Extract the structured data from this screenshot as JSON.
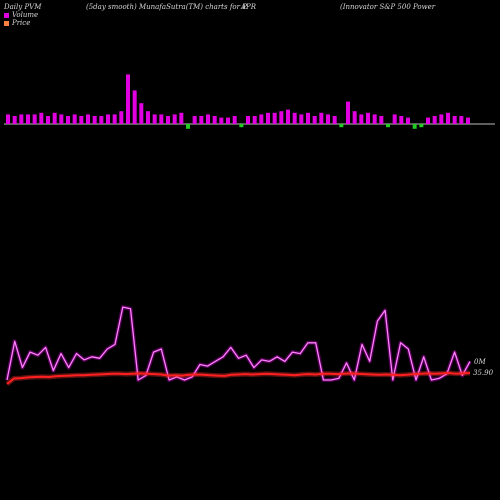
{
  "header": {
    "left": "Daily PVM",
    "mid": "(5day smooth) MunafaSutra(TM) charts for P",
    "symbol": "APR",
    "right": "(Innovator S&P 500 Power"
  },
  "legend": [
    {
      "label": "Volume",
      "color": "#e000e0"
    },
    {
      "label": "Price",
      "color": "#ff8040"
    }
  ],
  "chart_data": [
    {
      "type": "bar",
      "name": "volume",
      "baseline_color": "#bbbbbb",
      "up_color": "#e000e0",
      "down_color": "#22cc22",
      "values": [
        6,
        5,
        6,
        6,
        6,
        7,
        5,
        7,
        6,
        5,
        6,
        5,
        6,
        5,
        5,
        6,
        6,
        8,
        31,
        21,
        13,
        8,
        6,
        6,
        5,
        6,
        7,
        -3,
        5,
        5,
        6,
        5,
        4,
        4,
        5,
        -2,
        5,
        5,
        6,
        7,
        7,
        8,
        9,
        7,
        6,
        7,
        5,
        7,
        6,
        5,
        -2,
        14,
        8,
        6,
        7,
        6,
        5,
        -2,
        6,
        5,
        4,
        -3,
        -2,
        4,
        5,
        6,
        7,
        5,
        5,
        4
      ],
      "down_indices": [
        0,
        27,
        35,
        50,
        57,
        61,
        62
      ]
    },
    {
      "type": "line",
      "name": "volume-smooth",
      "color": "#e000e0",
      "values": [
        0,
        25,
        8,
        18,
        16,
        21,
        6,
        17,
        8,
        17,
        13,
        15,
        14,
        20,
        23,
        47,
        46,
        0,
        3,
        18,
        20,
        0,
        2,
        0,
        2,
        10,
        9,
        12,
        15,
        21,
        14,
        16,
        8,
        13,
        12,
        15,
        12,
        18,
        17,
        24,
        24,
        0,
        0,
        1,
        11,
        0,
        23,
        12,
        38,
        45,
        0,
        24,
        20,
        0,
        15,
        0,
        1,
        4,
        18,
        3,
        12
      ],
      "ymin": 0,
      "ymax": 100
    },
    {
      "type": "line",
      "name": "price",
      "color": "#ff2020",
      "values": [
        35.6,
        35.75,
        35.76,
        35.78,
        35.79,
        35.8,
        35.79,
        35.81,
        35.82,
        35.83,
        35.84,
        35.84,
        35.85,
        35.86,
        35.87,
        35.88,
        35.88,
        35.87,
        35.88,
        35.89,
        35.88,
        35.87,
        35.86,
        35.83,
        35.84,
        35.83,
        35.85,
        35.86,
        35.85,
        35.84,
        35.83,
        35.82,
        35.85,
        35.86,
        35.87,
        35.86,
        35.87,
        35.88,
        35.87,
        35.86,
        35.85,
        35.84,
        35.86,
        35.87,
        35.86,
        35.88,
        35.88,
        35.87,
        35.88,
        35.89,
        35.88,
        35.87,
        35.86,
        35.85,
        35.86,
        35.85,
        35.84,
        35.85,
        35.87,
        35.88,
        35.89,
        35.88,
        35.89,
        35.9,
        35.88,
        35.89,
        35.9
      ],
      "last_label": "35.90"
    }
  ],
  "volume_label": "0M"
}
